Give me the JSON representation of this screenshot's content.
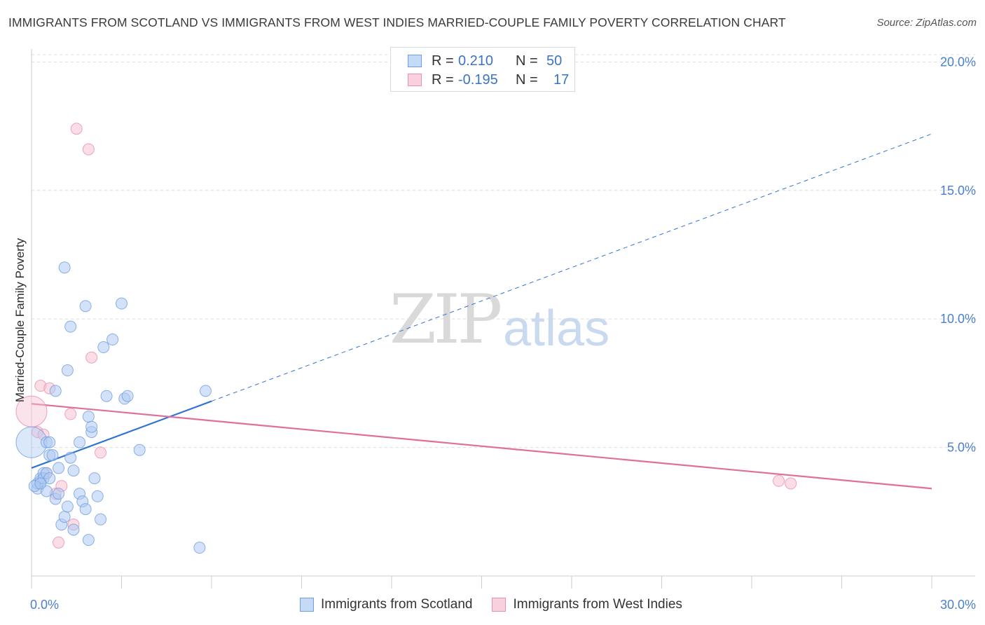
{
  "title": "IMMIGRANTS FROM SCOTLAND VS IMMIGRANTS FROM WEST INDIES MARRIED-COUPLE FAMILY POVERTY CORRELATION CHART",
  "source": "Source: ZipAtlas.com",
  "watermark": {
    "zip": "ZIP",
    "atlas": "atlas"
  },
  "legend": {
    "scotland": {
      "r_label": "R =",
      "r_value": "0.210",
      "n_label": "N =",
      "n_value": "50"
    },
    "westindies": {
      "r_label": "R =",
      "r_value": "-0.195",
      "n_label": "N =",
      "n_value": "17"
    }
  },
  "colors": {
    "scotland_fill": "#aecbf3",
    "scotland_stroke": "#6f9fe0",
    "scotland_line": "#2f74d0",
    "westindies_fill": "#f7c1d2",
    "westindies_stroke": "#ea8fae",
    "westindies_line": "#e0709a",
    "grid": "#dcdcdc",
    "tick_text": "#4a7fd0"
  },
  "chart_data": {
    "type": "scatter",
    "title": "IMMIGRANTS FROM SCOTLAND VS IMMIGRANTS FROM WEST INDIES MARRIED-COUPLE FAMILY POVERTY CORRELATION CHART",
    "xlabel": "",
    "ylabel": "Married-Couple Family Poverty",
    "xlim": [
      0,
      30
    ],
    "ylim": [
      0,
      20.5
    ],
    "x_tick_labels": [
      "0.0%",
      "30.0%"
    ],
    "y_ticks": [
      5,
      10,
      15,
      20
    ],
    "y_tick_labels": [
      "5.0%",
      "10.0%",
      "15.0%",
      "20.0%"
    ],
    "grid": true,
    "legend_position": "bottom",
    "series": [
      {
        "name": "Immigrants from Scotland",
        "color": "#6f9fe0",
        "points": [
          [
            0.0,
            5.2
          ],
          [
            0.2,
            3.4
          ],
          [
            0.2,
            3.6
          ],
          [
            0.3,
            3.7
          ],
          [
            0.3,
            3.8
          ],
          [
            0.4,
            4.0
          ],
          [
            0.4,
            3.8
          ],
          [
            0.5,
            3.3
          ],
          [
            0.5,
            5.2
          ],
          [
            0.5,
            4.0
          ],
          [
            0.6,
            3.8
          ],
          [
            0.6,
            5.2
          ],
          [
            0.6,
            4.7
          ],
          [
            0.7,
            4.7
          ],
          [
            0.8,
            3.0
          ],
          [
            0.8,
            7.2
          ],
          [
            0.9,
            4.2
          ],
          [
            0.9,
            3.2
          ],
          [
            1.0,
            2.0
          ],
          [
            1.1,
            12.0
          ],
          [
            1.1,
            2.3
          ],
          [
            1.2,
            2.7
          ],
          [
            1.2,
            8.0
          ],
          [
            1.3,
            4.6
          ],
          [
            1.3,
            9.7
          ],
          [
            1.4,
            1.8
          ],
          [
            1.4,
            4.1
          ],
          [
            1.6,
            5.2
          ],
          [
            1.6,
            3.2
          ],
          [
            1.7,
            2.9
          ],
          [
            1.8,
            10.5
          ],
          [
            1.8,
            2.6
          ],
          [
            1.9,
            6.2
          ],
          [
            1.9,
            1.4
          ],
          [
            2.0,
            5.6
          ],
          [
            2.0,
            5.8
          ],
          [
            2.1,
            3.8
          ],
          [
            2.2,
            3.1
          ],
          [
            2.3,
            2.2
          ],
          [
            2.4,
            8.9
          ],
          [
            2.5,
            7.0
          ],
          [
            2.7,
            9.2
          ],
          [
            3.0,
            10.6
          ],
          [
            3.1,
            6.9
          ],
          [
            3.2,
            7.0
          ],
          [
            3.6,
            4.9
          ],
          [
            5.6,
            1.1
          ],
          [
            5.8,
            7.2
          ],
          [
            0.1,
            3.5
          ],
          [
            0.3,
            3.6
          ]
        ]
      },
      {
        "name": "Immigrants from West Indies",
        "color": "#ea8fae",
        "points": [
          [
            0.0,
            6.4
          ],
          [
            0.2,
            5.6
          ],
          [
            0.3,
            7.4
          ],
          [
            0.4,
            5.5
          ],
          [
            0.5,
            4.0
          ],
          [
            0.6,
            7.3
          ],
          [
            0.8,
            3.2
          ],
          [
            0.9,
            1.3
          ],
          [
            1.0,
            3.5
          ],
          [
            1.3,
            6.3
          ],
          [
            1.4,
            2.0
          ],
          [
            1.5,
            17.4
          ],
          [
            1.9,
            16.6
          ],
          [
            2.0,
            8.5
          ],
          [
            2.3,
            4.8
          ],
          [
            24.9,
            3.7
          ],
          [
            25.3,
            3.6
          ]
        ]
      }
    ],
    "trendlines": [
      {
        "series": "Immigrants from Scotland",
        "x": [
          0,
          6.0
        ],
        "y": [
          4.2,
          6.8
        ],
        "extended_x": [
          6.0,
          30
        ],
        "extended_y": [
          6.8,
          17.2
        ],
        "style": "solid-then-dashed"
      },
      {
        "series": "Immigrants from West Indies",
        "x": [
          0,
          30
        ],
        "y": [
          6.7,
          3.4
        ],
        "style": "solid"
      }
    ]
  }
}
